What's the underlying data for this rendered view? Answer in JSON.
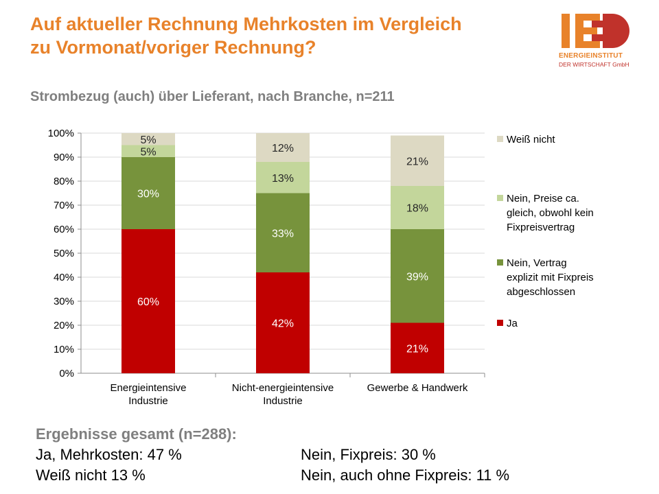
{
  "title_line1": "Auf aktueller Rechnung Mehrkosten im Vergleich",
  "title_line2": "zu Vormonat/voriger Rechnung?",
  "logo": {
    "name": "ENERGIEINSTITUT",
    "sub": "DER WIRTSCHAFT GmbH",
    "colors": {
      "orange": "#E8822A",
      "red": "#C0322B"
    }
  },
  "chart_data": {
    "type": "bar",
    "stacked": true,
    "title": "Strombezug (auch) über Lieferant, nach Branche, n=211",
    "categories": [
      [
        "Energieintensive",
        "Industrie"
      ],
      [
        "Nicht-energieintensive",
        "Industrie"
      ],
      [
        "Gewerbe & Handwerk"
      ]
    ],
    "series": [
      {
        "name": "Ja",
        "values": [
          60,
          42,
          21
        ],
        "labels": [
          "60%",
          "42%",
          "21%"
        ],
        "color": "#C00000"
      },
      {
        "name": "Nein, Vertrag explizit mit Fixpreis abgeschlossen",
        "legend_lines": [
          "Nein, Vertrag",
          "explizit mit Fixpreis",
          "abgeschlossen"
        ],
        "values": [
          30,
          33,
          39
        ],
        "labels": [
          "30%",
          "33%",
          "39%"
        ],
        "color": "#77933C"
      },
      {
        "name": "Nein, Preise ca. gleich, obwohl kein Fixpreisvertrag",
        "legend_lines": [
          "Nein, Preise ca.",
          "gleich, obwohl kein",
          "Fixpreisvertrag"
        ],
        "values": [
          5,
          13,
          18
        ],
        "labels": [
          "5%",
          "13%",
          "18%"
        ],
        "color": "#C3D69B"
      },
      {
        "name": "Weiß nicht",
        "legend_lines": [
          "Weiß nicht"
        ],
        "values": [
          5,
          12,
          21
        ],
        "labels": [
          "5%",
          "12%",
          "21%"
        ],
        "color": "#DDD9C3"
      }
    ],
    "ylim": [
      0,
      100
    ],
    "yticks": [
      "0%",
      "10%",
      "20%",
      "30%",
      "40%",
      "50%",
      "60%",
      "70%",
      "80%",
      "90%",
      "100%"
    ],
    "grid": true,
    "legend_position": "right"
  },
  "summary": {
    "heading": "Ergebnisse gesamt (n=288):",
    "row1_left": "Ja, Mehrkosten: 47 %",
    "row1_right": "Nein, Fixpreis: 30 %",
    "row2_left": "Weiß nicht 13 %",
    "row2_right": "Nein, auch ohne Fixpreis: 11 %"
  }
}
